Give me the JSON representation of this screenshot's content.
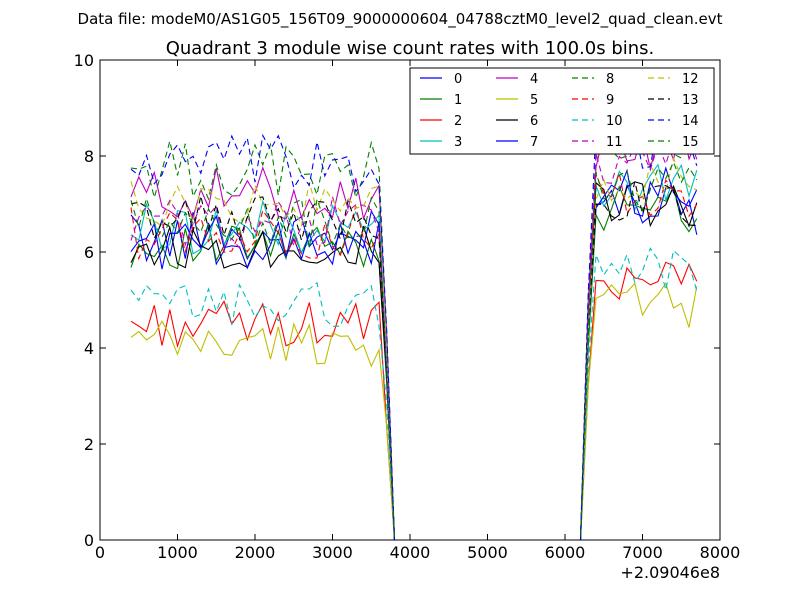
{
  "chart_data": {
    "type": "line",
    "suptitle": "Data file: modeM0/AS1G05_156T09_9000000604_04788cztM0_level2_quad_clean.evt",
    "title": "Quadrant 3 module wise count rates with 100.0s bins.",
    "xlabel": "",
    "ylabel": "",
    "x_offset_label": "+2.09046e8",
    "xlim": [
      0,
      8000
    ],
    "ylim": [
      0,
      10
    ],
    "x_ticks": [
      0,
      1000,
      2000,
      3000,
      4000,
      5000,
      6000,
      7000,
      8000
    ],
    "y_ticks": [
      0,
      2,
      4,
      6,
      8,
      10
    ],
    "x_tick_labels": [
      "0",
      "1000",
      "2000",
      "3000",
      "4000",
      "5000",
      "6000",
      "7000",
      "8000"
    ],
    "y_tick_labels": [
      "0",
      "2",
      "4",
      "6",
      "8",
      "10"
    ],
    "legend_position": "top-right",
    "legend_columns": 4,
    "segments": [
      {
        "x_start": 400,
        "x_end": 3700,
        "step": 100
      },
      {
        "x_start": 3800,
        "x_end": 6200,
        "step": 100
      },
      {
        "x_start": 6300,
        "x_end": 7700,
        "step": 100
      }
    ],
    "series": [
      {
        "name": "0",
        "color": "#0000ff",
        "dash": "solid",
        "level_a": 6.3,
        "level_b": 6.9,
        "amp": 0.35
      },
      {
        "name": "1",
        "color": "#008000",
        "dash": "solid",
        "level_a": 6.1,
        "level_b": 6.9,
        "amp": 0.3
      },
      {
        "name": "2",
        "color": "#ff0000",
        "dash": "solid",
        "level_a": 4.5,
        "level_b": 5.5,
        "amp": 0.3
      },
      {
        "name": "3",
        "color": "#00bfbf",
        "dash": "solid",
        "level_a": 6.5,
        "level_b": 7.3,
        "amp": 0.35
      },
      {
        "name": "4",
        "color": "#bf00bf",
        "dash": "solid",
        "level_a": 7.2,
        "level_b": 8.2,
        "amp": 0.35
      },
      {
        "name": "5",
        "color": "#bfbf00",
        "dash": "solid",
        "level_a": 4.1,
        "level_b": 4.9,
        "amp": 0.3
      },
      {
        "name": "6",
        "color": "#000000",
        "dash": "solid",
        "level_a": 6.1,
        "level_b": 7.0,
        "amp": 0.3
      },
      {
        "name": "7",
        "color": "#0000ff",
        "dash": "solid",
        "level_a": 6.2,
        "level_b": 7.2,
        "amp": 0.35
      },
      {
        "name": "8",
        "color": "#008000",
        "dash": "dashed",
        "level_a": 7.7,
        "level_b": 8.3,
        "amp": 0.4
      },
      {
        "name": "9",
        "color": "#ff0000",
        "dash": "dashed",
        "level_a": 6.4,
        "level_b": 7.3,
        "amp": 0.35
      },
      {
        "name": "10",
        "color": "#00bfbf",
        "dash": "dashed",
        "level_a": 4.9,
        "level_b": 5.6,
        "amp": 0.3
      },
      {
        "name": "11",
        "color": "#bf00bf",
        "dash": "dashed",
        "level_a": 6.6,
        "level_b": 7.9,
        "amp": 0.35
      },
      {
        "name": "12",
        "color": "#bfbf00",
        "dash": "dashed",
        "level_a": 7.0,
        "level_b": 7.5,
        "amp": 0.3
      },
      {
        "name": "13",
        "color": "#000000",
        "dash": "dashed",
        "level_a": 6.7,
        "level_b": 7.0,
        "amp": 0.3
      },
      {
        "name": "14",
        "color": "#0000ff",
        "dash": "dashed",
        "level_a": 7.8,
        "level_b": 8.2,
        "amp": 0.4
      },
      {
        "name": "15",
        "color": "#008000",
        "dash": "dashed",
        "level_a": 6.6,
        "level_b": 7.4,
        "amp": 0.35
      }
    ]
  }
}
